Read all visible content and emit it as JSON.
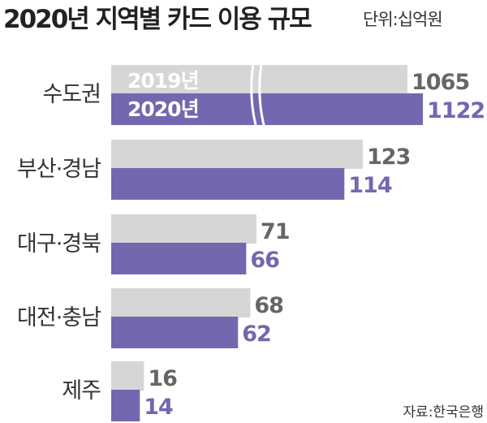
{
  "chart_data": {
    "type": "bar",
    "orientation": "horizontal",
    "title": "2020년 지역별 카드 이용 규모",
    "unit": "단위:십억원",
    "source": "자료:한국은행",
    "categories": [
      "수도권",
      "부산·경남",
      "대구·경북",
      "대전·충남",
      "제주"
    ],
    "series": [
      {
        "name": "2019년",
        "values": [
          1065,
          123,
          71,
          68,
          16
        ],
        "color": "#d6d6d6",
        "label_color": "#666666"
      },
      {
        "name": "2020년",
        "values": [
          1122,
          114,
          66,
          62,
          14
        ],
        "color": "#7367b0",
        "label_color": "#7367b0"
      }
    ],
    "axis_break": "수도권",
    "grid": false,
    "legend": "inside-first-bars"
  }
}
